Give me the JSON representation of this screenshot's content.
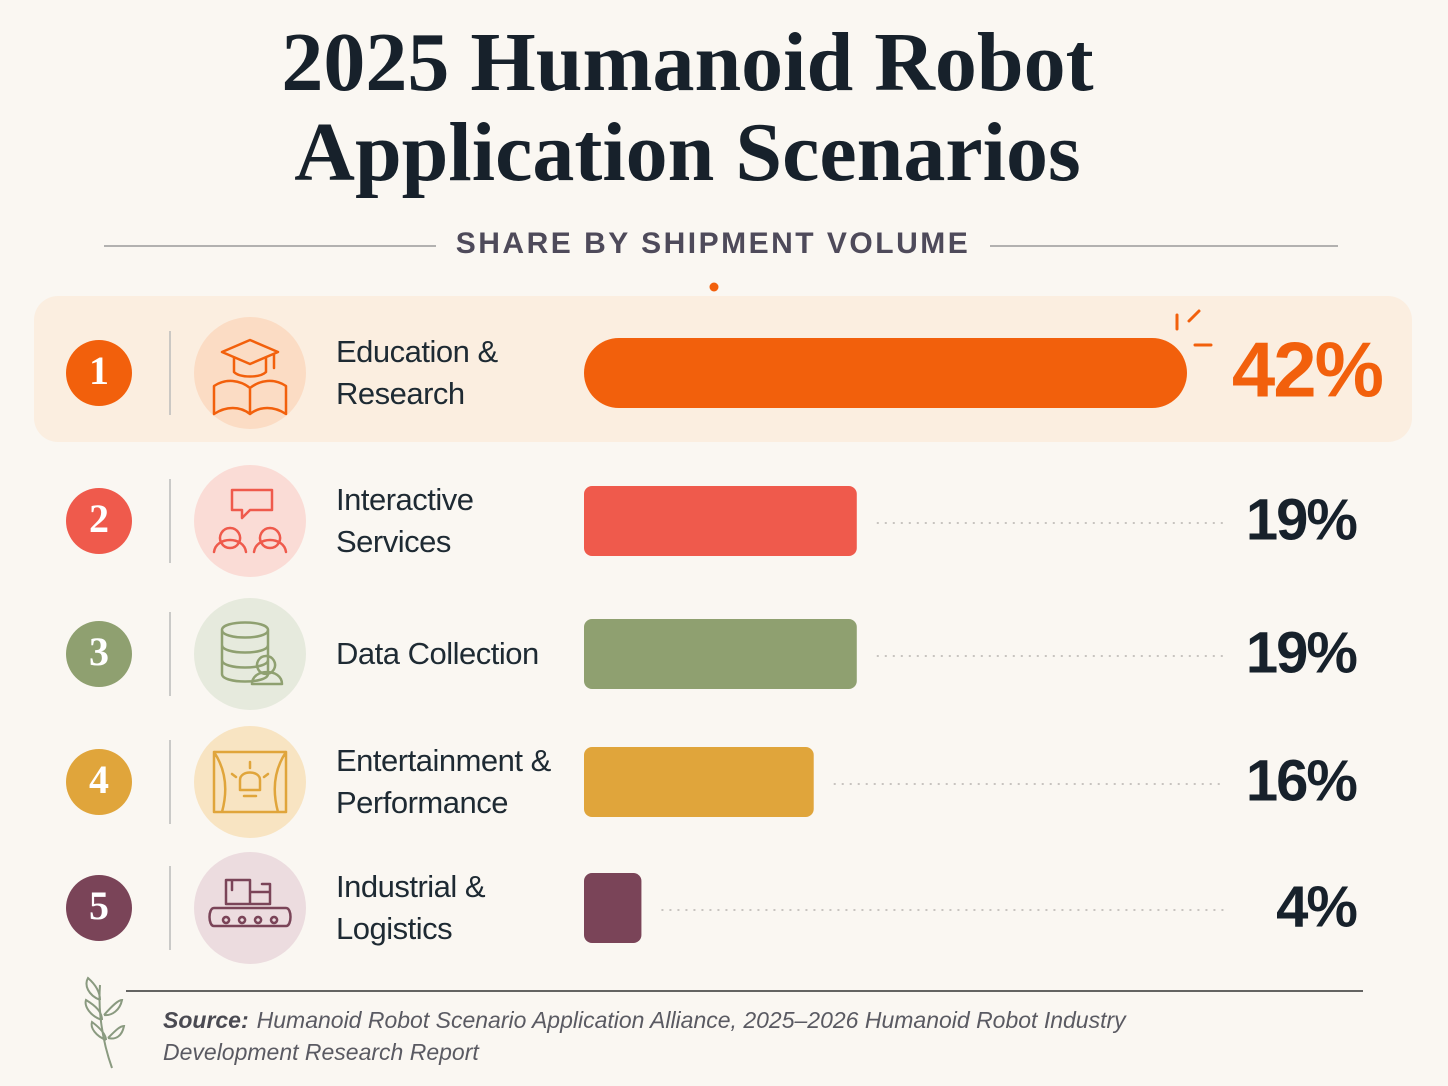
{
  "chart_data": {
    "type": "bar",
    "orientation": "horizontal",
    "title": "2025 Humanoid Robot Application Scenarios",
    "subtitle": "SHARE BY SHIPMENT VOLUME",
    "ranks": [
      1,
      2,
      3,
      4,
      5
    ],
    "categories": [
      "Education & Research",
      "Interactive Services",
      "Data Collection",
      "Entertainment & Performance",
      "Industrial & Logistics"
    ],
    "values": [
      42,
      19,
      19,
      16,
      4
    ],
    "value_labels": [
      "42%",
      "19%",
      "19%",
      "16%",
      "4%"
    ],
    "colors": [
      "#f2600c",
      "#ef5a4c",
      "#8fa070",
      "#e0a53b",
      "#7a4458"
    ],
    "source_label": "Source:",
    "source": "Humanoid Robot Scenario Application Alliance, 2025–2026 Humanoid Robot Industry Development Research Report"
  }
}
